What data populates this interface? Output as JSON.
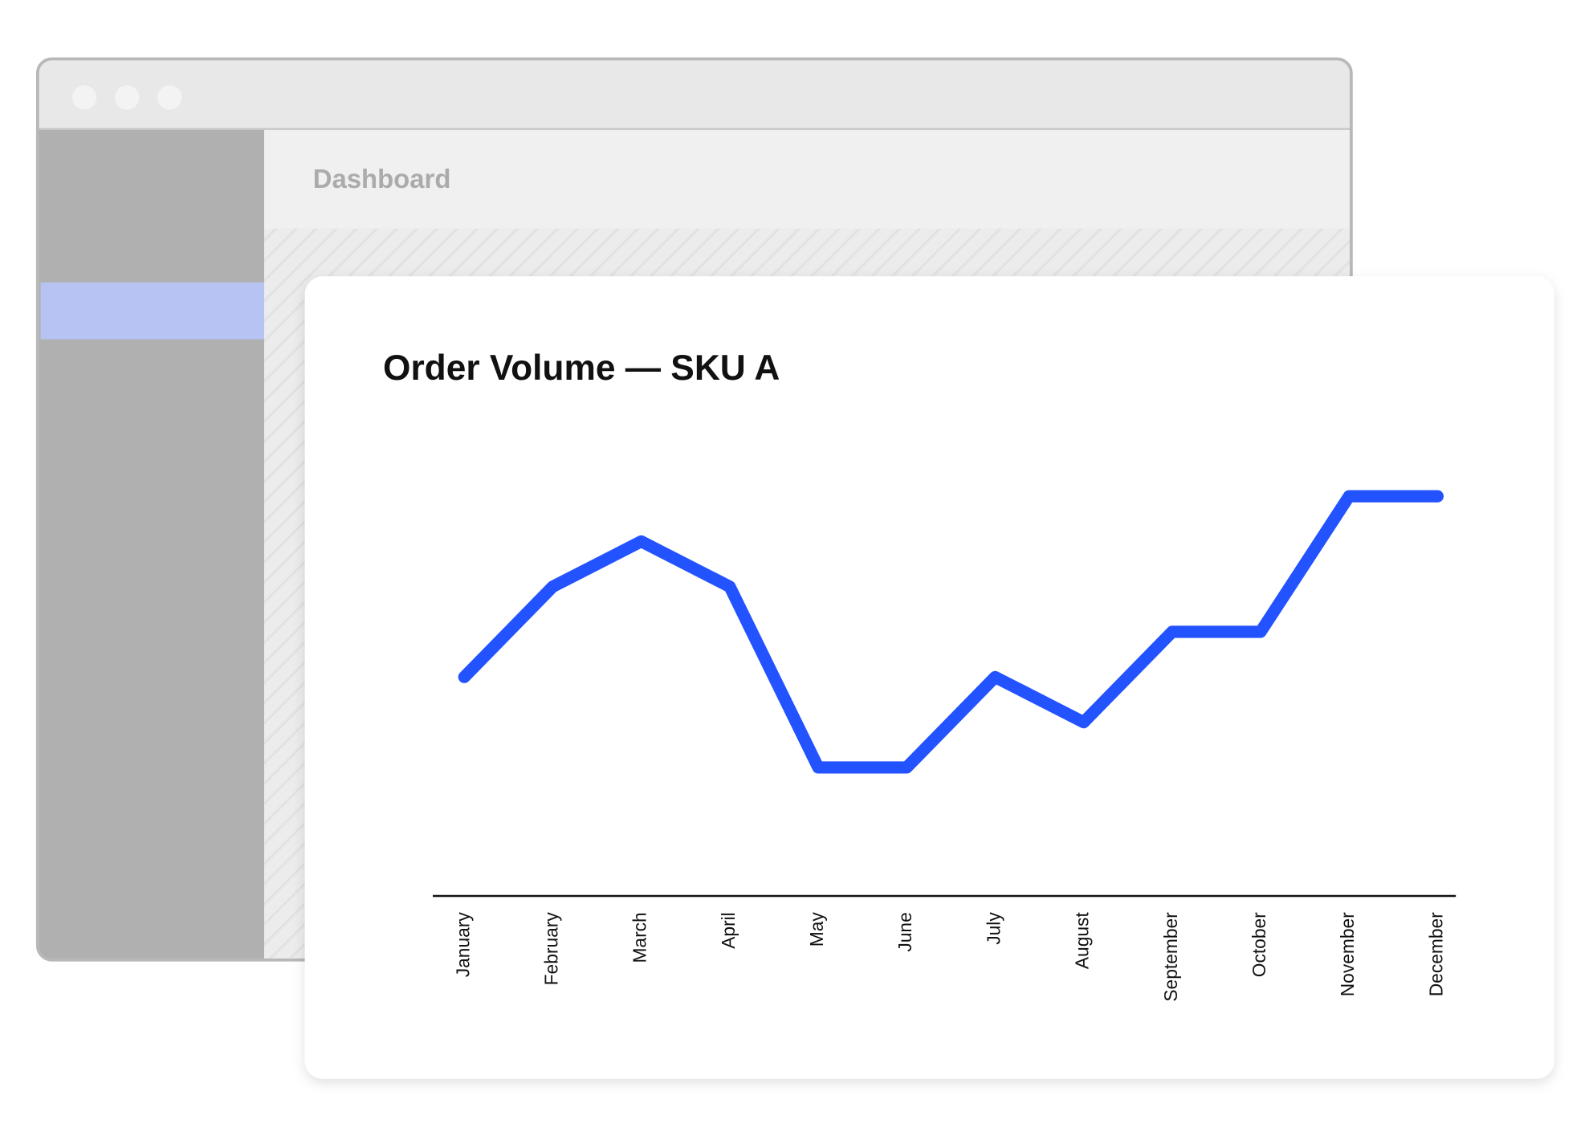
{
  "window": {
    "header": "Dashboard"
  },
  "chart_data": {
    "type": "line",
    "title": "Order Volume — SKU A",
    "categories": [
      "January",
      "February",
      "March",
      "April",
      "May",
      "June",
      "July",
      "August",
      "September",
      "October",
      "November",
      "December"
    ],
    "values": [
      5,
      7,
      8,
      7,
      3,
      3,
      5,
      4,
      6,
      6,
      9,
      9
    ],
    "color": "#2352ff",
    "ylim": [
      0,
      10
    ]
  }
}
